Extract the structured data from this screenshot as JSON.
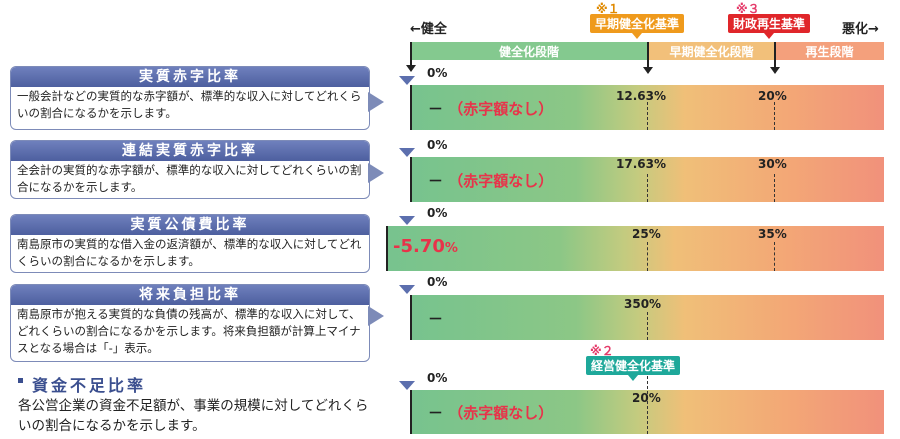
{
  "header": {
    "good_label": "←健全",
    "bad_label": "悪化→",
    "note1": "※１",
    "note3": "※３",
    "tag_early": "早期健全化基準",
    "tag_rebuild": "財政再生基準",
    "stage_healthy": "健全化段階",
    "stage_early": "早期健全化段階",
    "stage_rebuild": "再生段階"
  },
  "indicators": [
    {
      "title": "実質赤字比率",
      "desc": "一般会計などの実質的な赤字額が、標準的な収入に対してどれくらいの割合になるかを示します。",
      "zero": "0%",
      "threshold1": "12.63%",
      "threshold2": "20%",
      "value_dash": "－",
      "value_note": "（赤字額なし）"
    },
    {
      "title": "連結実質赤字比率",
      "desc": "全会計の実質的な赤字額が、標準的な収入に対してどれくらいの割合になるかを示します。",
      "zero": "0%",
      "threshold1": "17.63%",
      "threshold2": "30%",
      "value_dash": "－",
      "value_note": "（赤字額なし）"
    },
    {
      "title": "実質公債費比率",
      "desc": "南島原市の実質的な借入金の返済額が、標準的な収入に対してどれくらいの割合になるかを示します。",
      "zero": "0%",
      "threshold1": "25%",
      "threshold2": "35%",
      "value": "-5.70",
      "value_unit": "%"
    },
    {
      "title": "将来負担比率",
      "desc": "南島原市が抱える実質的な負債の残高が、標準的な収入に対して、どれくらいの割合になるかを示します。将来負担額が計算上マイナスとなる場合は「-」表示。",
      "zero": "0%",
      "threshold1": "350%",
      "value_dash": "－"
    },
    {
      "title": "資金不足比率",
      "desc": "各公営企業の資金不足額が、事業の規模に対してどれくらいの割合になるかを示します。",
      "zero": "0%",
      "note2": "※２",
      "tag_management": "経営健全化基準",
      "threshold1": "20%",
      "value_dash": "－",
      "value_note": "（赤字額なし）"
    }
  ],
  "colors": {
    "card_blue": "#5c6fae",
    "tag_orange": "#ef9a1c",
    "tag_red": "#e0262a",
    "tag_teal": "#1ea89a",
    "value_red": "#e8334a"
  }
}
